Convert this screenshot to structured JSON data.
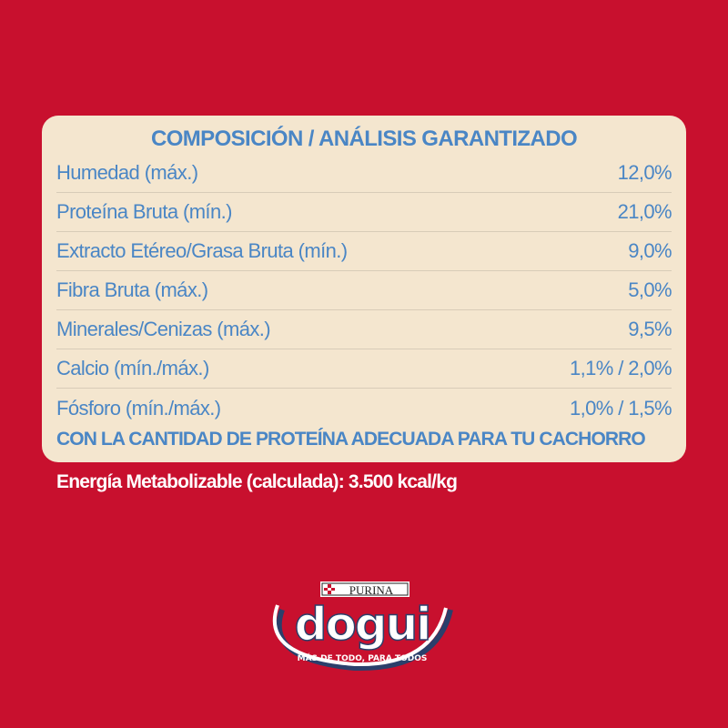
{
  "panel": {
    "title": "COMPOSICIÓN / ANÁLISIS GARANTIZADO",
    "rows": [
      {
        "label": "Humedad (máx.)",
        "value": "12,0%"
      },
      {
        "label": "Proteína Bruta (mín.)",
        "value": "21,0%"
      },
      {
        "label": "Extracto Etéreo/Grasa Bruta (mín.)",
        "value": "9,0%"
      },
      {
        "label": "Fibra Bruta (máx.)",
        "value": "5,0%"
      },
      {
        "label": "Minerales/Cenizas (máx.)",
        "value": "9,5%"
      },
      {
        "label": "Calcio (mín./máx.)",
        "value": "1,1% / 2,0%"
      },
      {
        "label": "Fósforo (mín./máx.)",
        "value": "1,0% / 1,5%"
      }
    ],
    "footer": "CON LA CANTIDAD DE PROTEÍNA ADECUADA PARA TU CACHORRO"
  },
  "energy": "Energía Metabolizable (calculada): 3.500 kcal/kg",
  "logo": {
    "brand": "PURINA",
    "name": "dogui",
    "tagline": "MÁS DE TODO, PARA TODOS"
  },
  "colors": {
    "background": "#c8102e",
    "panel": "#f4e6cf",
    "text": "#4a86c5",
    "logo_arc": "#2b3f6b"
  }
}
